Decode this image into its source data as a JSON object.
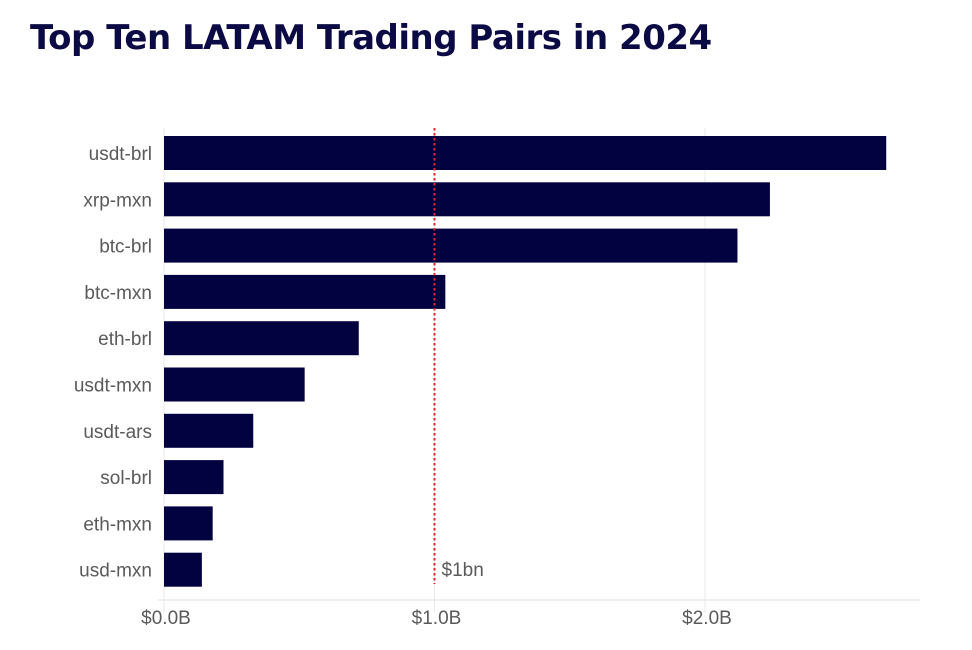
{
  "chart_data": {
    "type": "bar",
    "orientation": "horizontal",
    "title": "Top Ten LATAM Trading Pairs in 2024",
    "xlabel": "",
    "ylabel": "",
    "categories": [
      "usdt-brl",
      "xrp-mxn",
      "btc-brl",
      "btc-mxn",
      "eth-brl",
      "usdt-mxn",
      "usdt-ars",
      "sol-brl",
      "eth-mxn",
      "usd-mxn"
    ],
    "values": [
      2.67,
      2.24,
      2.12,
      1.04,
      0.72,
      0.52,
      0.33,
      0.22,
      0.18,
      0.14
    ],
    "units": "USD billions",
    "xlim": [
      0,
      2.8
    ],
    "xticks": [
      0,
      1,
      2
    ],
    "xtick_labels": [
      "$0.0B",
      "$1.0B",
      "$2.0B"
    ],
    "grid": "vertical",
    "reference_line": {
      "value": 1.0,
      "label": "$1bn",
      "style": "dotted",
      "color": "#e8242a"
    },
    "bar_color": "#020241",
    "legend": "none"
  }
}
